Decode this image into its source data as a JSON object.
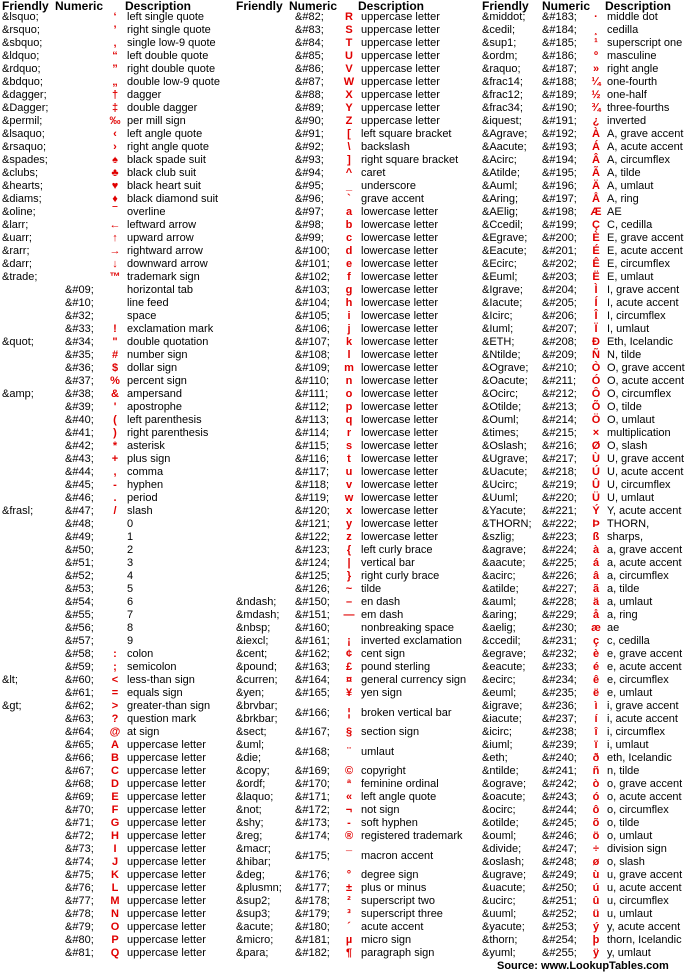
{
  "headers": [
    {
      "friendly": "Friendly",
      "numeric": "Numeric",
      "description": "Description"
    },
    {
      "friendly": "Friendly",
      "numeric": "Numeric",
      "description": "Description"
    },
    {
      "friendly": "Friendly",
      "numeric": "Numeric",
      "description": "Description"
    }
  ],
  "columns": [
    [
      [
        "&lsquo;",
        "",
        "‘",
        "left single quote"
      ],
      [
        "&rsquo;",
        "",
        "’",
        "right single quote"
      ],
      [
        "&sbquo;",
        "",
        "‚",
        "single low-9 quote"
      ],
      [
        "&ldquo;",
        "",
        "“",
        "left double quote"
      ],
      [
        "&rdquo;",
        "",
        "”",
        "right double quote"
      ],
      [
        "&bdquo;",
        "",
        "„",
        "double low-9 quote"
      ],
      [
        "&dagger;",
        "",
        "†",
        "dagger"
      ],
      [
        "&Dagger;",
        "",
        "‡",
        "double dagger"
      ],
      [
        "&permil;",
        "",
        "‰",
        "per mill sign"
      ],
      [
        "&lsaquo;",
        "",
        "‹",
        "left angle quote"
      ],
      [
        "&rsaquo;",
        "",
        "›",
        "right angle quote"
      ],
      [
        "&spades;",
        "",
        "♠",
        "black spade suit"
      ],
      [
        "&clubs;",
        "",
        "♣",
        "black club suit"
      ],
      [
        "&hearts;",
        "",
        "♥",
        "black heart suit"
      ],
      [
        "&diams;",
        "",
        "♦",
        "black diamond suit"
      ],
      [
        "&oline;",
        "",
        "‾",
        "overline"
      ],
      [
        "&larr;",
        "",
        "←",
        "leftward arrow"
      ],
      [
        "&uarr;",
        "",
        "↑",
        "upward arrow"
      ],
      [
        "&rarr;",
        "",
        "→",
        "rightward arrow"
      ],
      [
        "&darr;",
        "",
        "↓",
        "downward arrow"
      ],
      [
        "&trade;",
        "",
        "™",
        "trademark sign"
      ],
      [
        "",
        "&#09;",
        "",
        "horizontal tab"
      ],
      [
        "",
        "&#10;",
        "",
        "line feed"
      ],
      [
        "",
        "&#32;",
        "",
        "space"
      ],
      [
        "",
        "&#33;",
        "!",
        "exclamation mark"
      ],
      [
        "&quot;",
        "&#34;",
        "\"",
        "double quotation"
      ],
      [
        "",
        "&#35;",
        "#",
        "number sign"
      ],
      [
        "",
        "&#36;",
        "$",
        "dollar sign"
      ],
      [
        "",
        "&#37;",
        "%",
        "percent sign"
      ],
      [
        "&amp;",
        "&#38;",
        "&",
        "ampersand"
      ],
      [
        "",
        "&#39;",
        "'",
        "apostrophe"
      ],
      [
        "",
        "&#40;",
        "(",
        "left parenthesis"
      ],
      [
        "",
        "&#41;",
        ")",
        "right parenthesis"
      ],
      [
        "",
        "&#42;",
        "*",
        "asterisk"
      ],
      [
        "",
        "&#43;",
        "+",
        "plus sign"
      ],
      [
        "",
        "&#44;",
        ",",
        "comma"
      ],
      [
        "",
        "&#45;",
        "-",
        "hyphen"
      ],
      [
        "",
        "&#46;",
        ".",
        "period"
      ],
      [
        "&frasl;",
        "&#47;",
        "/",
        "slash"
      ],
      [
        "",
        "&#48;",
        "",
        "0"
      ],
      [
        "",
        "&#49;",
        "",
        "1"
      ],
      [
        "",
        "&#50;",
        "",
        "2"
      ],
      [
        "",
        "&#51;",
        "",
        "3"
      ],
      [
        "",
        "&#52;",
        "",
        "4"
      ],
      [
        "",
        "&#53;",
        "",
        "5"
      ],
      [
        "",
        "&#54;",
        "",
        "6"
      ],
      [
        "",
        "&#55;",
        "",
        "7"
      ],
      [
        "",
        "&#56;",
        "",
        "8"
      ],
      [
        "",
        "&#57;",
        "",
        "9"
      ],
      [
        "",
        "&#58;",
        ":",
        "colon"
      ],
      [
        "",
        "&#59;",
        ";",
        "semicolon"
      ],
      [
        "&lt;",
        "&#60;",
        "<",
        "less-than sign"
      ],
      [
        "",
        "&#61;",
        "=",
        "equals sign"
      ],
      [
        "&gt;",
        "&#62;",
        ">",
        "greater-than sign"
      ],
      [
        "",
        "&#63;",
        "?",
        "question mark"
      ],
      [
        "",
        "&#64;",
        "@",
        "at sign"
      ],
      [
        "",
        "&#65;",
        "A",
        "uppercase letter"
      ],
      [
        "",
        "&#66;",
        "B",
        "uppercase letter"
      ],
      [
        "",
        "&#67;",
        "C",
        "uppercase letter"
      ],
      [
        "",
        "&#68;",
        "D",
        "uppercase letter"
      ],
      [
        "",
        "&#69;",
        "E",
        "uppercase letter"
      ],
      [
        "",
        "&#70;",
        "F",
        "uppercase letter"
      ],
      [
        "",
        "&#71;",
        "G",
        "uppercase letter"
      ],
      [
        "",
        "&#72;",
        "H",
        "uppercase letter"
      ],
      [
        "",
        "&#73;",
        "I",
        "uppercase letter"
      ],
      [
        "",
        "&#74;",
        "J",
        "uppercase letter"
      ],
      [
        "",
        "&#75;",
        "K",
        "uppercase letter"
      ],
      [
        "",
        "&#76;",
        "L",
        "uppercase letter"
      ],
      [
        "",
        "&#77;",
        "M",
        "uppercase letter"
      ],
      [
        "",
        "&#78;",
        "N",
        "uppercase letter"
      ],
      [
        "",
        "&#79;",
        "O",
        "uppercase letter"
      ],
      [
        "",
        "&#80;",
        "P",
        "uppercase letter"
      ],
      [
        "",
        "&#81;",
        "Q",
        "uppercase letter"
      ]
    ],
    [
      [
        "",
        "&#82;",
        "R",
        "uppercase letter"
      ],
      [
        "",
        "&#83;",
        "S",
        "uppercase letter"
      ],
      [
        "",
        "&#84;",
        "T",
        "uppercase letter"
      ],
      [
        "",
        "&#85;",
        "U",
        "uppercase letter"
      ],
      [
        "",
        "&#86;",
        "V",
        "uppercase letter"
      ],
      [
        "",
        "&#87;",
        "W",
        "uppercase letter"
      ],
      [
        "",
        "&#88;",
        "X",
        "uppercase letter"
      ],
      [
        "",
        "&#89;",
        "Y",
        "uppercase letter"
      ],
      [
        "",
        "&#90;",
        "Z",
        "uppercase letter"
      ],
      [
        "",
        "&#91;",
        "[",
        "left square bracket"
      ],
      [
        "",
        "&#92;",
        "\\",
        "backslash"
      ],
      [
        "",
        "&#93;",
        "]",
        "right square bracket"
      ],
      [
        "",
        "&#94;",
        "^",
        "caret"
      ],
      [
        "",
        "&#95;",
        "_",
        "underscore"
      ],
      [
        "",
        "&#96;",
        "`",
        "grave accent"
      ],
      [
        "",
        "&#97;",
        "a",
        "lowercase letter"
      ],
      [
        "",
        "&#98;",
        "b",
        "lowercase letter"
      ],
      [
        "",
        "&#99;",
        "c",
        "lowercase letter"
      ],
      [
        "",
        "&#100;",
        "d",
        "lowercase letter"
      ],
      [
        "",
        "&#101;",
        "e",
        "lowercase letter"
      ],
      [
        "",
        "&#102;",
        "f",
        "lowercase letter"
      ],
      [
        "",
        "&#103;",
        "g",
        "lowercase letter"
      ],
      [
        "",
        "&#104;",
        "h",
        "lowercase letter"
      ],
      [
        "",
        "&#105;",
        "i",
        "lowercase letter"
      ],
      [
        "",
        "&#106;",
        "j",
        "lowercase letter"
      ],
      [
        "",
        "&#107;",
        "k",
        "lowercase letter"
      ],
      [
        "",
        "&#108;",
        "l",
        "lowercase letter"
      ],
      [
        "",
        "&#109;",
        "m",
        "lowercase letter"
      ],
      [
        "",
        "&#110;",
        "n",
        "lowercase letter"
      ],
      [
        "",
        "&#111;",
        "o",
        "lowercase letter"
      ],
      [
        "",
        "&#112;",
        "p",
        "lowercase letter"
      ],
      [
        "",
        "&#113;",
        "q",
        "lowercase letter"
      ],
      [
        "",
        "&#114;",
        "r",
        "lowercase letter"
      ],
      [
        "",
        "&#115;",
        "s",
        "lowercase letter"
      ],
      [
        "",
        "&#116;",
        "t",
        "lowercase letter"
      ],
      [
        "",
        "&#117;",
        "u",
        "lowercase letter"
      ],
      [
        "",
        "&#118;",
        "v",
        "lowercase letter"
      ],
      [
        "",
        "&#119;",
        "w",
        "lowercase letter"
      ],
      [
        "",
        "&#120;",
        "x",
        "lowercase letter"
      ],
      [
        "",
        "&#121;",
        "y",
        "lowercase letter"
      ],
      [
        "",
        "&#122;",
        "z",
        "lowercase letter"
      ],
      [
        "",
        "&#123;",
        "{",
        "left curly brace"
      ],
      [
        "",
        "&#124;",
        "|",
        "vertical bar"
      ],
      [
        "",
        "&#125;",
        "}",
        "right curly brace"
      ],
      [
        "",
        "&#126;",
        "~",
        "tilde"
      ],
      [
        "&ndash;",
        "&#150;",
        "–",
        "en dash"
      ],
      [
        "&mdash;",
        "&#151;",
        "—",
        "em dash"
      ],
      [
        "&nbsp;",
        "&#160;",
        "",
        "nonbreaking space"
      ],
      [
        "&iexcl;",
        "&#161;",
        "¡",
        "inverted exclamation"
      ],
      [
        "&cent;",
        "&#162;",
        "¢",
        "cent sign"
      ],
      [
        "&pound;",
        "&#163;",
        "£",
        "pound sterling"
      ],
      [
        "&curren;",
        "&#164;",
        "¤",
        "general currency sign"
      ],
      [
        "&yen;",
        "&#165;",
        "¥",
        "yen sign"
      ],
      [
        "&brvbar;\n&brkbar;",
        "&#166;",
        "¦",
        "broken vertical bar"
      ],
      [
        "&sect;",
        "&#167;",
        "§",
        "section sign"
      ],
      [
        "&uml;\n&die;",
        "&#168;",
        "¨",
        "umlaut"
      ],
      [
        "&copy;",
        "&#169;",
        "©",
        "copyright"
      ],
      [
        "&ordf;",
        "&#170;",
        "ª",
        "feminine ordinal"
      ],
      [
        "&laquo;",
        "&#171;",
        "«",
        "left angle quote"
      ],
      [
        "&not;",
        "&#172;",
        "¬",
        "not sign"
      ],
      [
        "&shy;",
        "&#173;",
        "-",
        "soft hyphen"
      ],
      [
        "&reg;",
        "&#174;",
        "®",
        "registered trademark"
      ],
      [
        "&macr;\n&hibar;",
        "&#175;",
        "¯",
        "macron accent"
      ],
      [
        "&deg;",
        "&#176;",
        "°",
        "degree sign"
      ],
      [
        "&plusmn;",
        "&#177;",
        "±",
        "plus or minus"
      ],
      [
        "&sup2;",
        "&#178;",
        "²",
        "superscript two"
      ],
      [
        "&sup3;",
        "&#179;",
        "³",
        "superscript three"
      ],
      [
        "&acute;",
        "&#180;",
        "´",
        "acute accent"
      ],
      [
        "&micro;",
        "&#181;",
        "µ",
        "micro sign"
      ],
      [
        "&para;",
        "&#182;",
        "¶",
        "paragraph sign"
      ]
    ],
    [
      [
        "&middot;",
        "&#183;",
        "·",
        "middle dot"
      ],
      [
        "&cedil;",
        "&#184;",
        "¸",
        "cedilla"
      ],
      [
        "&sup1;",
        "&#185;",
        "¹",
        "superscript one"
      ],
      [
        "&ordm;",
        "&#186;",
        "º",
        "masculine"
      ],
      [
        "&raquo;",
        "&#187;",
        "»",
        "right angle"
      ],
      [
        "&frac14;",
        "&#188;",
        "¼",
        "one-fourth"
      ],
      [
        "&frac12;",
        "&#189;",
        "½",
        "one-half"
      ],
      [
        "&frac34;",
        "&#190;",
        "¾",
        "three-fourths"
      ],
      [
        "&iquest;",
        "&#191;",
        "¿",
        "inverted"
      ],
      [
        "&Agrave;",
        "&#192;",
        "À",
        "A, grave accent"
      ],
      [
        "&Aacute;",
        "&#193;",
        "Á",
        "A, acute accent"
      ],
      [
        "&Acirc;",
        "&#194;",
        "Â",
        "A, circumflex"
      ],
      [
        "&Atilde;",
        "&#195;",
        "Ã",
        "A, tilde"
      ],
      [
        "&Auml;",
        "&#196;",
        "Ä",
        "A, umlaut"
      ],
      [
        "&Aring;",
        "&#197;",
        "Å",
        "A, ring"
      ],
      [
        "&AElig;",
        "&#198;",
        "Æ",
        "AE"
      ],
      [
        "&Ccedil;",
        "&#199;",
        "Ç",
        "C, cedilla"
      ],
      [
        "&Egrave;",
        "&#200;",
        "È",
        "E, grave accent"
      ],
      [
        "&Eacute;",
        "&#201;",
        "É",
        "E, acute accent"
      ],
      [
        "&Ecirc;",
        "&#202;",
        "Ê",
        "E, circumflex"
      ],
      [
        "&Euml;",
        "&#203;",
        "Ë",
        "E, umlaut"
      ],
      [
        "&Igrave;",
        "&#204;",
        "Ì",
        "I, grave accent"
      ],
      [
        "&Iacute;",
        "&#205;",
        "Í",
        "I, acute accent"
      ],
      [
        "&Icirc;",
        "&#206;",
        "Î",
        "I, circumflex"
      ],
      [
        "&Iuml;",
        "&#207;",
        "Ï",
        "I, umlaut"
      ],
      [
        "&ETH;",
        "&#208;",
        "Ð",
        "Eth, Icelandic"
      ],
      [
        "&Ntilde;",
        "&#209;",
        "Ñ",
        "N, tilde"
      ],
      [
        "&Ograve;",
        "&#210;",
        "Ò",
        "O, grave accent"
      ],
      [
        "&Oacute;",
        "&#211;",
        "Ó",
        "O, acute accent"
      ],
      [
        "&Ocirc;",
        "&#212;",
        "Ô",
        "O, circumflex"
      ],
      [
        "&Otilde;",
        "&#213;",
        "Õ",
        "O, tilde"
      ],
      [
        "&Ouml;",
        "&#214;",
        "Ö",
        "O, umlaut"
      ],
      [
        "&times;",
        "&#215;",
        "×",
        "multiplication"
      ],
      [
        "&Oslash;",
        "&#216;",
        "Ø",
        "O, slash"
      ],
      [
        "&Ugrave;",
        "&#217;",
        "Ù",
        "U, grave accent"
      ],
      [
        "&Uacute;",
        "&#218;",
        "Ú",
        "U, acute accent"
      ],
      [
        "&Ucirc;",
        "&#219;",
        "Û",
        "U, circumflex"
      ],
      [
        "&Uuml;",
        "&#220;",
        "Ü",
        "U, umlaut"
      ],
      [
        "&Yacute;",
        "&#221;",
        "Ý",
        "Y, acute accent"
      ],
      [
        "&THORN;",
        "&#222;",
        "Þ",
        "THORN,"
      ],
      [
        "&szlig;",
        "&#223;",
        "ß",
        "sharps,"
      ],
      [
        "&agrave;",
        "&#224;",
        "à",
        "a, grave accent"
      ],
      [
        "&aacute;",
        "&#225;",
        "á",
        "a, acute accent"
      ],
      [
        "&acirc;",
        "&#226;",
        "â",
        "a, circumflex"
      ],
      [
        "&atilde;",
        "&#227;",
        "ã",
        "a, tilde"
      ],
      [
        "&auml;",
        "&#228;",
        "ä",
        "a, umlaut"
      ],
      [
        "&aring;",
        "&#229;",
        "å",
        "a, ring"
      ],
      [
        "&aelig;",
        "&#230;",
        "æ",
        "ae"
      ],
      [
        "&ccedil;",
        "&#231;",
        "ç",
        "c, cedilla"
      ],
      [
        "&egrave;",
        "&#232;",
        "è",
        "e, grave accent"
      ],
      [
        "&eacute;",
        "&#233;",
        "é",
        "e, acute accent"
      ],
      [
        "&ecirc;",
        "&#234;",
        "ê",
        "e, circumflex"
      ],
      [
        "&euml;",
        "&#235;",
        "ë",
        "e, umlaut"
      ],
      [
        "&igrave;",
        "&#236;",
        "ì",
        "i, grave accent"
      ],
      [
        "&iacute;",
        "&#237;",
        "í",
        "i, acute accent"
      ],
      [
        "&icirc;",
        "&#238;",
        "î",
        "i, circumflex"
      ],
      [
        "&iuml;",
        "&#239;",
        "ï",
        "i, umlaut"
      ],
      [
        "&eth;",
        "&#240;",
        "ð",
        "eth, Icelandic"
      ],
      [
        "&ntilde;",
        "&#241;",
        "ñ",
        "n, tilde"
      ],
      [
        "&ograve;",
        "&#242;",
        "ò",
        "o, grave accent"
      ],
      [
        "&oacute;",
        "&#243;",
        "ó",
        "o, acute accent"
      ],
      [
        "&ocirc;",
        "&#244;",
        "ô",
        "o, circumflex"
      ],
      [
        "&otilde;",
        "&#245;",
        "õ",
        "o, tilde"
      ],
      [
        "&ouml;",
        "&#246;",
        "ö",
        "o, umlaut"
      ],
      [
        "&divide;",
        "&#247;",
        "÷",
        "division sign"
      ],
      [
        "&oslash;",
        "&#248;",
        "ø",
        "o, slash"
      ],
      [
        "&ugrave;",
        "&#249;",
        "ù",
        "u, grave accent"
      ],
      [
        "&uacute;",
        "&#250;",
        "ú",
        "u, acute accent"
      ],
      [
        "&ucirc;",
        "&#251;",
        "û",
        "u, circumflex"
      ],
      [
        "&uuml;",
        "&#252;",
        "ü",
        "u, umlaut"
      ],
      [
        "&yacute;",
        "&#253;",
        "ý",
        "y, acute accent"
      ],
      [
        "&thorn;",
        "&#254;",
        "þ",
        "thorn, Icelandic"
      ],
      [
        "&yuml;",
        "&#255;",
        "ÿ",
        "y, umlaut"
      ]
    ]
  ],
  "source": "Source:  www.LookupTables.com",
  "colors": {
    "glyph": "#e00000",
    "text": "#000000"
  }
}
